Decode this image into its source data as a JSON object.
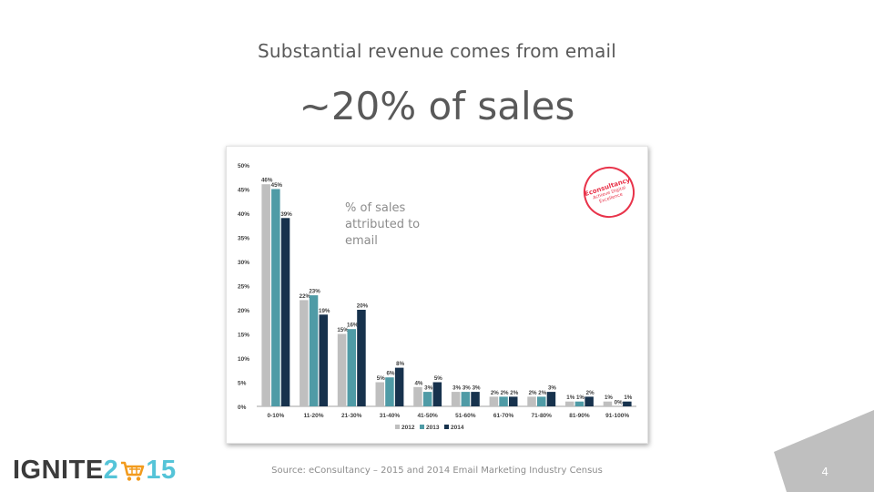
{
  "slide": {
    "subtitle": "Substantial revenue comes from email",
    "headline": "~20% of sales",
    "annotation": "% of sales attributed to email",
    "source": "Source: eConsultancy – 2015 and 2014 Email Marketing Industry Census",
    "page_number": "4",
    "logo_text_left": "IGNITE",
    "logo_text_2": "2",
    "logo_text_right": "15",
    "badge_brand": "Econsultancy",
    "badge_tagline": "Achieve Digital Excellence",
    "colors": {
      "title_text": "#595959",
      "logo_accent": "#55c4d8",
      "badge_red": "#e8334a",
      "corner_gray": "#bfbfbf"
    }
  },
  "chart_data": {
    "type": "bar",
    "categories": [
      "0-10%",
      "11-20%",
      "21-30%",
      "31-40%",
      "41-50%",
      "51-60%",
      "61-70%",
      "71-80%",
      "81-90%",
      "91-100%"
    ],
    "series": [
      {
        "name": "2012",
        "color": "#bfbfbf",
        "values": [
          46,
          22,
          15,
          5,
          4,
          3,
          2,
          2,
          1,
          1
        ],
        "labels": [
          "46%",
          "22%",
          "15%",
          "5%",
          "4%",
          "3%",
          "2%",
          "2%",
          "1%",
          "1%"
        ]
      },
      {
        "name": "2013",
        "color": "#4f9ba6",
        "values": [
          45,
          23,
          16,
          6,
          3,
          3,
          2,
          2,
          1,
          0
        ],
        "labels": [
          "45%",
          "23%",
          "16%",
          "6%",
          "3%",
          "3%",
          "2%",
          "2%",
          "1%",
          "0%"
        ]
      },
      {
        "name": "2014",
        "color": "#17324d",
        "values": [
          39,
          19,
          20,
          8,
          5,
          3,
          2,
          3,
          2,
          1
        ],
        "labels": [
          "39%",
          "19%",
          "20%",
          "8%",
          "5%",
          "3%",
          "2%",
          "3%",
          "2%",
          "1%"
        ]
      }
    ],
    "yticks": [
      "0%",
      "5%",
      "10%",
      "15%",
      "20%",
      "25%",
      "30%",
      "35%",
      "40%",
      "45%",
      "50%"
    ],
    "ylim": [
      0,
      50
    ],
    "legend_position": "bottom",
    "grid": false
  }
}
